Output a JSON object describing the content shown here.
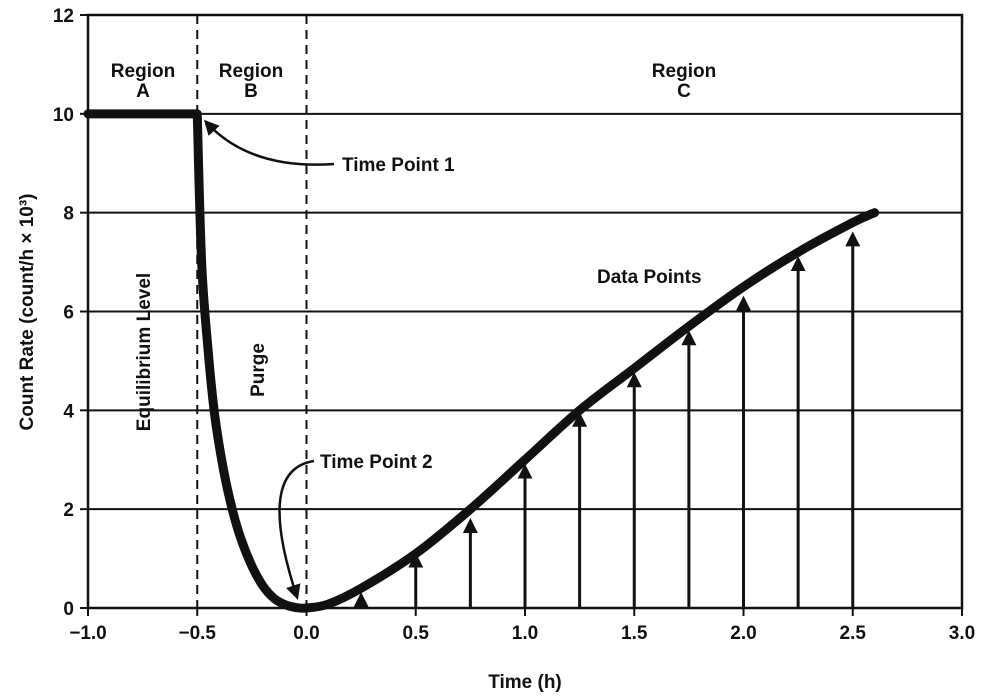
{
  "chart_data": {
    "type": "line",
    "title": "",
    "xlabel": "Time (h)",
    "ylabel": "Count Rate (count/h × 10³)",
    "xlim": [
      -1.0,
      3.0
    ],
    "ylim": [
      0,
      12
    ],
    "grid": "horizontal",
    "x_ticks": [
      -1.0,
      -0.5,
      0.0,
      0.5,
      1.0,
      1.5,
      2.0,
      2.5,
      3.0
    ],
    "x_tick_labels": [
      "−1.0",
      "−0.5",
      "0.0",
      "0.5",
      "1.0",
      "1.5",
      "2.0",
      "2.5",
      "3.0"
    ],
    "y_ticks": [
      0,
      2,
      4,
      6,
      8,
      10,
      12
    ],
    "y_tick_labels": [
      "0",
      "2",
      "4",
      "6",
      "8",
      "10",
      "12"
    ],
    "curve": {
      "x": [
        -1.0,
        -0.5,
        -0.48,
        -0.45,
        -0.42,
        -0.38,
        -0.34,
        -0.3,
        -0.25,
        -0.2,
        -0.15,
        -0.1,
        -0.05,
        0.0,
        0.1,
        0.25,
        0.5,
        0.75,
        1.0,
        1.25,
        1.5,
        1.75,
        2.0,
        2.25,
        2.5,
        2.6
      ],
      "y": [
        10.0,
        10.0,
        7.0,
        5.2,
        3.9,
        2.8,
        2.0,
        1.4,
        0.85,
        0.45,
        0.2,
        0.07,
        0.01,
        0.0,
        0.08,
        0.4,
        1.1,
        2.0,
        3.0,
        4.0,
        4.85,
        5.7,
        6.5,
        7.2,
        7.8,
        8.0
      ]
    },
    "data_points": {
      "x": [
        0.25,
        0.5,
        0.75,
        1.0,
        1.25,
        1.5,
        1.75,
        2.0,
        2.25,
        2.5
      ],
      "y": [
        0.3,
        1.1,
        1.8,
        2.9,
        3.95,
        4.75,
        5.6,
        6.3,
        7.1,
        7.6
      ]
    },
    "region_boundaries": [
      -0.5,
      0.0
    ],
    "regions": [
      {
        "line1": "Region",
        "line2": "A"
      },
      {
        "line1": "Region",
        "line2": "B"
      },
      {
        "line1": "Region",
        "line2": "C"
      }
    ],
    "annotations": {
      "time_point_1": "Time Point 1",
      "time_point_2": "Time Point 2",
      "data_points": "Data Points",
      "equilibrium": "Equilibrium Level",
      "purge": "Purge"
    },
    "colors": {
      "line": "#111111",
      "grid": "#111111",
      "background": "#ffffff"
    }
  }
}
